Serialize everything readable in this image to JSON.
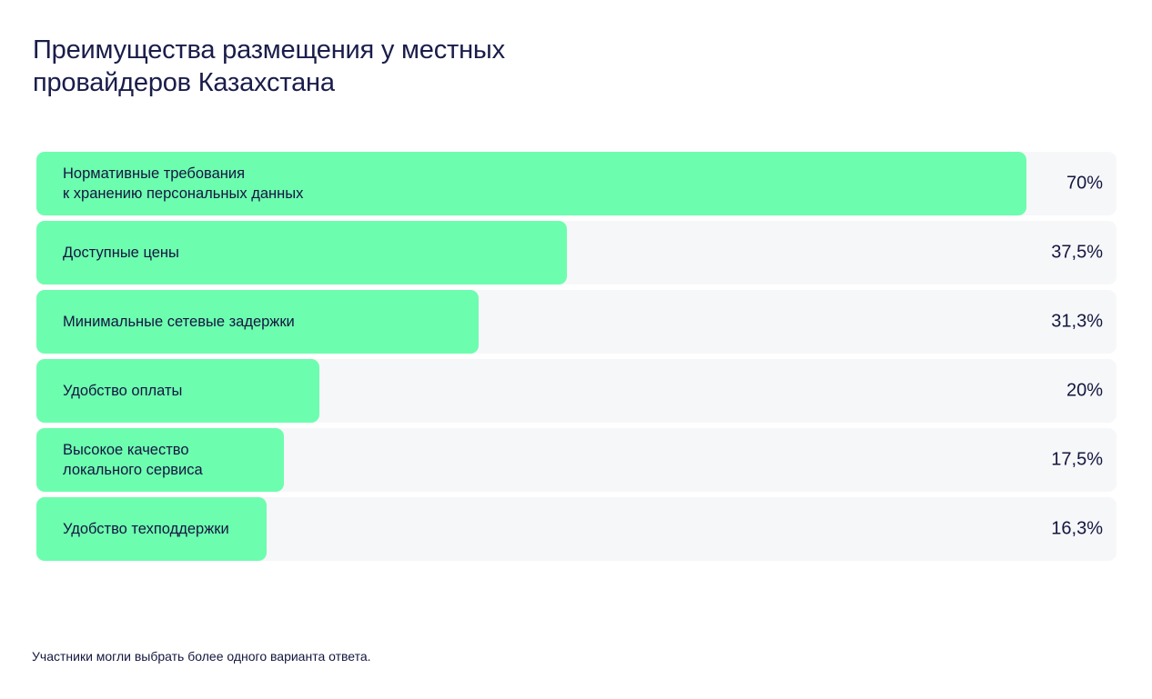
{
  "title_lines": [
    "Преимущества размещения у местных",
    "провайдеров Казахстана"
  ],
  "chart_data": {
    "type": "bar",
    "orientation": "horizontal",
    "title": "Преимущества размещения у местных провайдеров Казахстана",
    "categories": [
      "Нормативные требования\nк хранению персональных данных",
      "Доступные цены",
      "Минимальные сетевые задержки",
      "Удобство оплаты",
      "Высокое качество\nлокального сервиса",
      "Удобство техподдержки"
    ],
    "values": [
      70,
      37.5,
      31.3,
      20,
      17.5,
      16.3
    ],
    "value_labels": [
      "70%",
      "37,5%",
      "31,3%",
      "20%",
      "17,5%",
      "16,3%"
    ],
    "unit": "%",
    "xlim": [
      0,
      76.4
    ],
    "bar_color": "#6dfdaf",
    "track_color": "#f6f7f9"
  },
  "footnote": "Участники могли выбрать более одного варианта ответа."
}
